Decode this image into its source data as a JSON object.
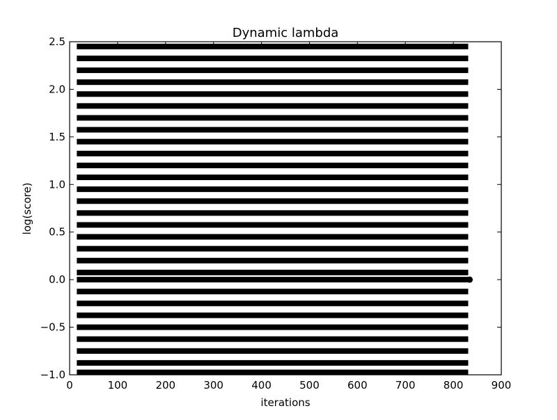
{
  "chart_data": {
    "type": "scatter",
    "title": "Dynamic lambda",
    "xlabel": "iterations",
    "ylabel": "log(score)",
    "xlim": [
      0,
      900
    ],
    "ylim": [
      -1.0,
      2.5
    ],
    "xticks": [
      0,
      100,
      200,
      300,
      400,
      500,
      600,
      700,
      800,
      900
    ],
    "xtick_labels": [
      "0",
      "100",
      "200",
      "300",
      "400",
      "500",
      "600",
      "700",
      "800",
      "900"
    ],
    "yticks": [
      -1.0,
      -0.5,
      0.0,
      0.5,
      1.0,
      1.5,
      2.0,
      2.5
    ],
    "ytick_labels": [
      "−1.0",
      "−0.5",
      "0.0",
      "0.5",
      "1.0",
      "1.5",
      "2.0",
      "2.5"
    ],
    "grid": false,
    "series": [
      {
        "color": "#000000",
        "x_range": [
          15,
          831
        ],
        "y_levels": [
          2.45,
          2.325,
          2.2,
          2.075,
          1.95,
          1.825,
          1.7,
          1.575,
          1.45,
          1.325,
          1.2,
          1.075,
          0.95,
          0.825,
          0.7,
          0.575,
          0.45,
          0.325,
          0.2,
          0.075,
          0.0,
          -0.125,
          -0.25,
          -0.375,
          -0.5,
          -0.625,
          -0.75,
          -0.875,
          -0.975
        ]
      }
    ],
    "end_marker": {
      "x": 834,
      "y": 0.0,
      "color": "#000000"
    }
  }
}
